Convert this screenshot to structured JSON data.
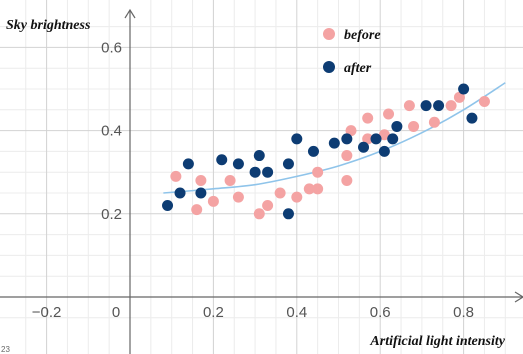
{
  "chart_data": {
    "type": "scatter",
    "title": "",
    "xlabel": "Artificial light intensity",
    "ylabel": "Sky brightness",
    "xlim": [
      -0.3,
      0.93
    ],
    "ylim": [
      -0.08,
      0.68
    ],
    "x_ticks": [
      -0.2,
      0,
      0.2,
      0.4,
      0.6,
      0.8
    ],
    "y_ticks": [
      0.2,
      0.4,
      0.6
    ],
    "x_tick_labels": [
      "−0.2",
      "0",
      "0.2",
      "0.4",
      "0.6",
      "0.8"
    ],
    "y_tick_labels": [
      "0.2",
      "0.4",
      "0.6"
    ],
    "grid": true,
    "legend_position": "top-center",
    "corner_label": "23",
    "series": [
      {
        "name": "before",
        "color": "#f4a3a3",
        "points": [
          [
            0.11,
            0.29
          ],
          [
            0.16,
            0.21
          ],
          [
            0.17,
            0.28
          ],
          [
            0.2,
            0.23
          ],
          [
            0.24,
            0.28
          ],
          [
            0.26,
            0.24
          ],
          [
            0.31,
            0.2
          ],
          [
            0.33,
            0.22
          ],
          [
            0.36,
            0.25
          ],
          [
            0.4,
            0.24
          ],
          [
            0.43,
            0.26
          ],
          [
            0.45,
            0.3
          ],
          [
            0.45,
            0.26
          ],
          [
            0.52,
            0.28
          ],
          [
            0.52,
            0.34
          ],
          [
            0.53,
            0.4
          ],
          [
            0.57,
            0.38
          ],
          [
            0.57,
            0.43
          ],
          [
            0.61,
            0.39
          ],
          [
            0.62,
            0.44
          ],
          [
            0.67,
            0.46
          ],
          [
            0.68,
            0.41
          ],
          [
            0.73,
            0.42
          ],
          [
            0.77,
            0.46
          ],
          [
            0.79,
            0.48
          ],
          [
            0.85,
            0.47
          ]
        ]
      },
      {
        "name": "after",
        "color": "#0d3c73",
        "points": [
          [
            0.09,
            0.22
          ],
          [
            0.12,
            0.25
          ],
          [
            0.14,
            0.32
          ],
          [
            0.17,
            0.25
          ],
          [
            0.22,
            0.33
          ],
          [
            0.26,
            0.32
          ],
          [
            0.31,
            0.34
          ],
          [
            0.3,
            0.3
          ],
          [
            0.33,
            0.3
          ],
          [
            0.38,
            0.32
          ],
          [
            0.38,
            0.2
          ],
          [
            0.4,
            0.38
          ],
          [
            0.44,
            0.35
          ],
          [
            0.49,
            0.37
          ],
          [
            0.52,
            0.38
          ],
          [
            0.56,
            0.36
          ],
          [
            0.59,
            0.38
          ],
          [
            0.61,
            0.35
          ],
          [
            0.63,
            0.38
          ],
          [
            0.64,
            0.41
          ],
          [
            0.71,
            0.46
          ],
          [
            0.74,
            0.46
          ],
          [
            0.8,
            0.5
          ],
          [
            0.82,
            0.43
          ]
        ]
      }
    ],
    "trendline": {
      "color": "#8fc4ea",
      "points": [
        [
          0.08,
          0.25
        ],
        [
          0.2,
          0.26
        ],
        [
          0.3,
          0.27
        ],
        [
          0.4,
          0.29
        ],
        [
          0.5,
          0.315
        ],
        [
          0.6,
          0.35
        ],
        [
          0.7,
          0.395
        ],
        [
          0.8,
          0.45
        ],
        [
          0.9,
          0.515
        ]
      ]
    }
  }
}
